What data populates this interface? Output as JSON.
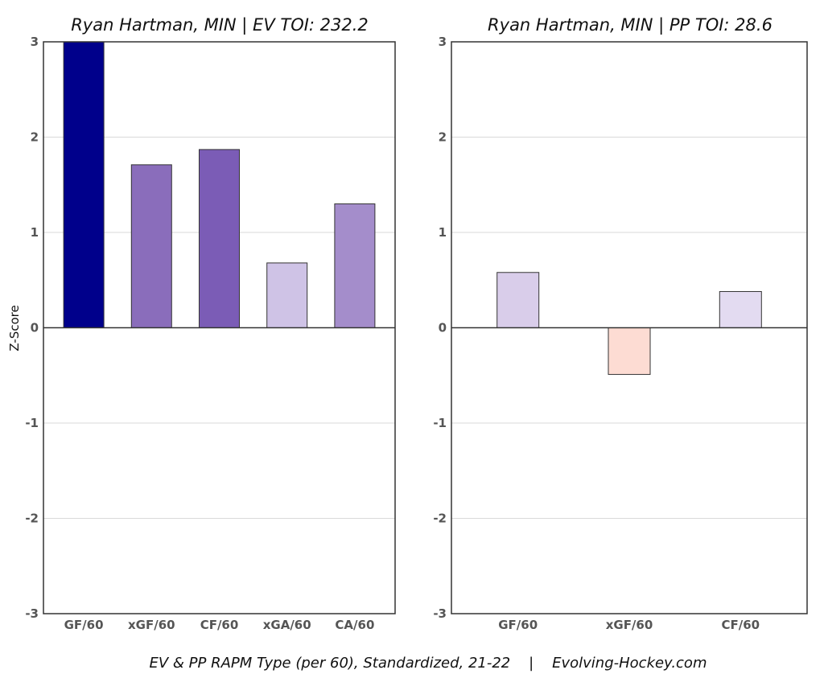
{
  "caption": "EV & PP RAPM Type (per 60), Standardized, 21-22    |    Evolving-Hockey.com",
  "chart_data": [
    {
      "type": "bar",
      "title": "Ryan Hartman, MIN  |  EV TOI: 232.2",
      "ylabel": "Z-Score",
      "ylim": [
        -3,
        3
      ],
      "yticks": [
        3,
        2,
        1,
        0,
        -1,
        -2,
        -3
      ],
      "grid": true,
      "categories": [
        "GF/60",
        "xGF/60",
        "CF/60",
        "xGA/60",
        "CA/60"
      ],
      "values": [
        3.0,
        1.71,
        1.87,
        0.68,
        1.3
      ],
      "colors": [
        "#00008B",
        "#8A6DBB",
        "#7B5CB6",
        "#CFC3E6",
        "#A48DCB"
      ]
    },
    {
      "type": "bar",
      "title": "Ryan Hartman, MIN  |  PP TOI: 28.6",
      "ylabel": "",
      "ylim": [
        -3,
        3
      ],
      "yticks": [
        3,
        2,
        1,
        0,
        -1,
        -2,
        -3
      ],
      "grid": true,
      "categories": [
        "GF/60",
        "xGF/60",
        "CF/60"
      ],
      "values": [
        0.58,
        -0.49,
        0.38
      ],
      "colors": [
        "#D9CDEA",
        "#FDDCD3",
        "#E3DBF1"
      ]
    }
  ]
}
